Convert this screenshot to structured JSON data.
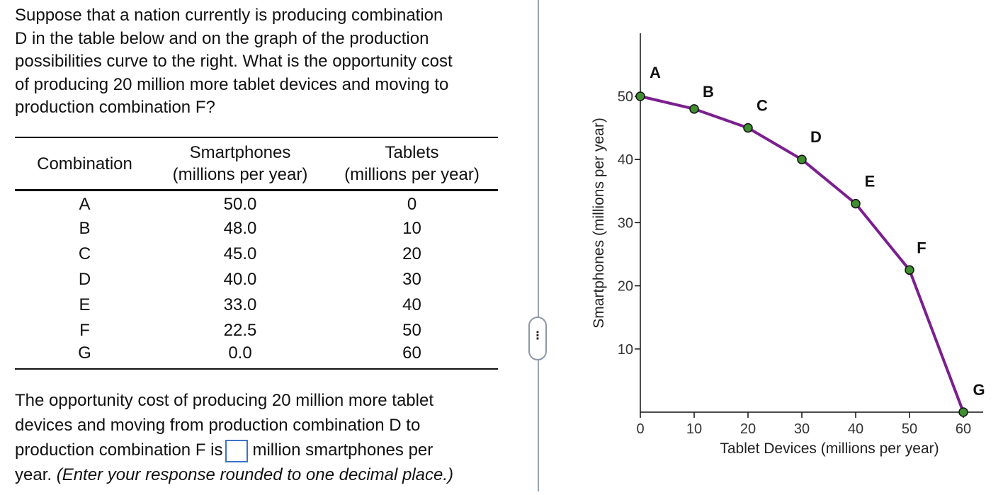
{
  "question": {
    "lines": [
      "Suppose that a nation currently is producing combination",
      "D in the table below and on the graph of the production",
      "possibilities curve to the right. What is the opportunity cost",
      "of producing 20 million more tablet devices and moving to",
      "production combination F?"
    ]
  },
  "table": {
    "headers": {
      "combination": "Combination",
      "smartphones_line1": "Smartphones",
      "smartphones_line2": "(millions per year)",
      "tablets_line1": "Tablets",
      "tablets_line2": "(millions per year)"
    },
    "rows": [
      {
        "combination": "A",
        "smartphones": "50.0",
        "tablets": "0"
      },
      {
        "combination": "B",
        "smartphones": "48.0",
        "tablets": "10"
      },
      {
        "combination": "C",
        "smartphones": "45.0",
        "tablets": "20"
      },
      {
        "combination": "D",
        "smartphones": "40.0",
        "tablets": "30"
      },
      {
        "combination": "E",
        "smartphones": "33.0",
        "tablets": "40"
      },
      {
        "combination": "F",
        "smartphones": "22.5",
        "tablets": "50"
      },
      {
        "combination": "G",
        "smartphones": "0.0",
        "tablets": "60"
      }
    ]
  },
  "answer": {
    "line1": "The opportunity cost of producing 20 million more tablet",
    "line2": "devices and moving from production combination D to",
    "line3_before": "production combination F is",
    "line3_after": "million smartphones per",
    "line4_before": "year.",
    "line4_note": "(Enter your response rounded to one decimal place.)",
    "input_value": ""
  },
  "handle": {
    "label": "⋮"
  },
  "colors": {
    "curve": "#7b1f8f",
    "point_fill": "#3f8e2f",
    "divider": "#9aa4b3",
    "input_border": "#3b73c8"
  },
  "chart_data": {
    "type": "line",
    "xlabel": "Tablet Devices (millions per year)",
    "ylabel": "Smartphones (millions per year)",
    "xlim": [
      0,
      60
    ],
    "ylim": [
      0,
      50
    ],
    "xticks": [
      0,
      10,
      20,
      30,
      40,
      50,
      60
    ],
    "yticks": [
      10,
      20,
      30,
      40,
      50
    ],
    "points": [
      {
        "label": "A",
        "x": 0,
        "y": 50.0
      },
      {
        "label": "B",
        "x": 10,
        "y": 48.0
      },
      {
        "label": "C",
        "x": 20,
        "y": 45.0
      },
      {
        "label": "D",
        "x": 30,
        "y": 40.0
      },
      {
        "label": "E",
        "x": 40,
        "y": 33.0
      },
      {
        "label": "F",
        "x": 50,
        "y": 22.5
      },
      {
        "label": "G",
        "x": 60,
        "y": 0.0
      }
    ]
  }
}
